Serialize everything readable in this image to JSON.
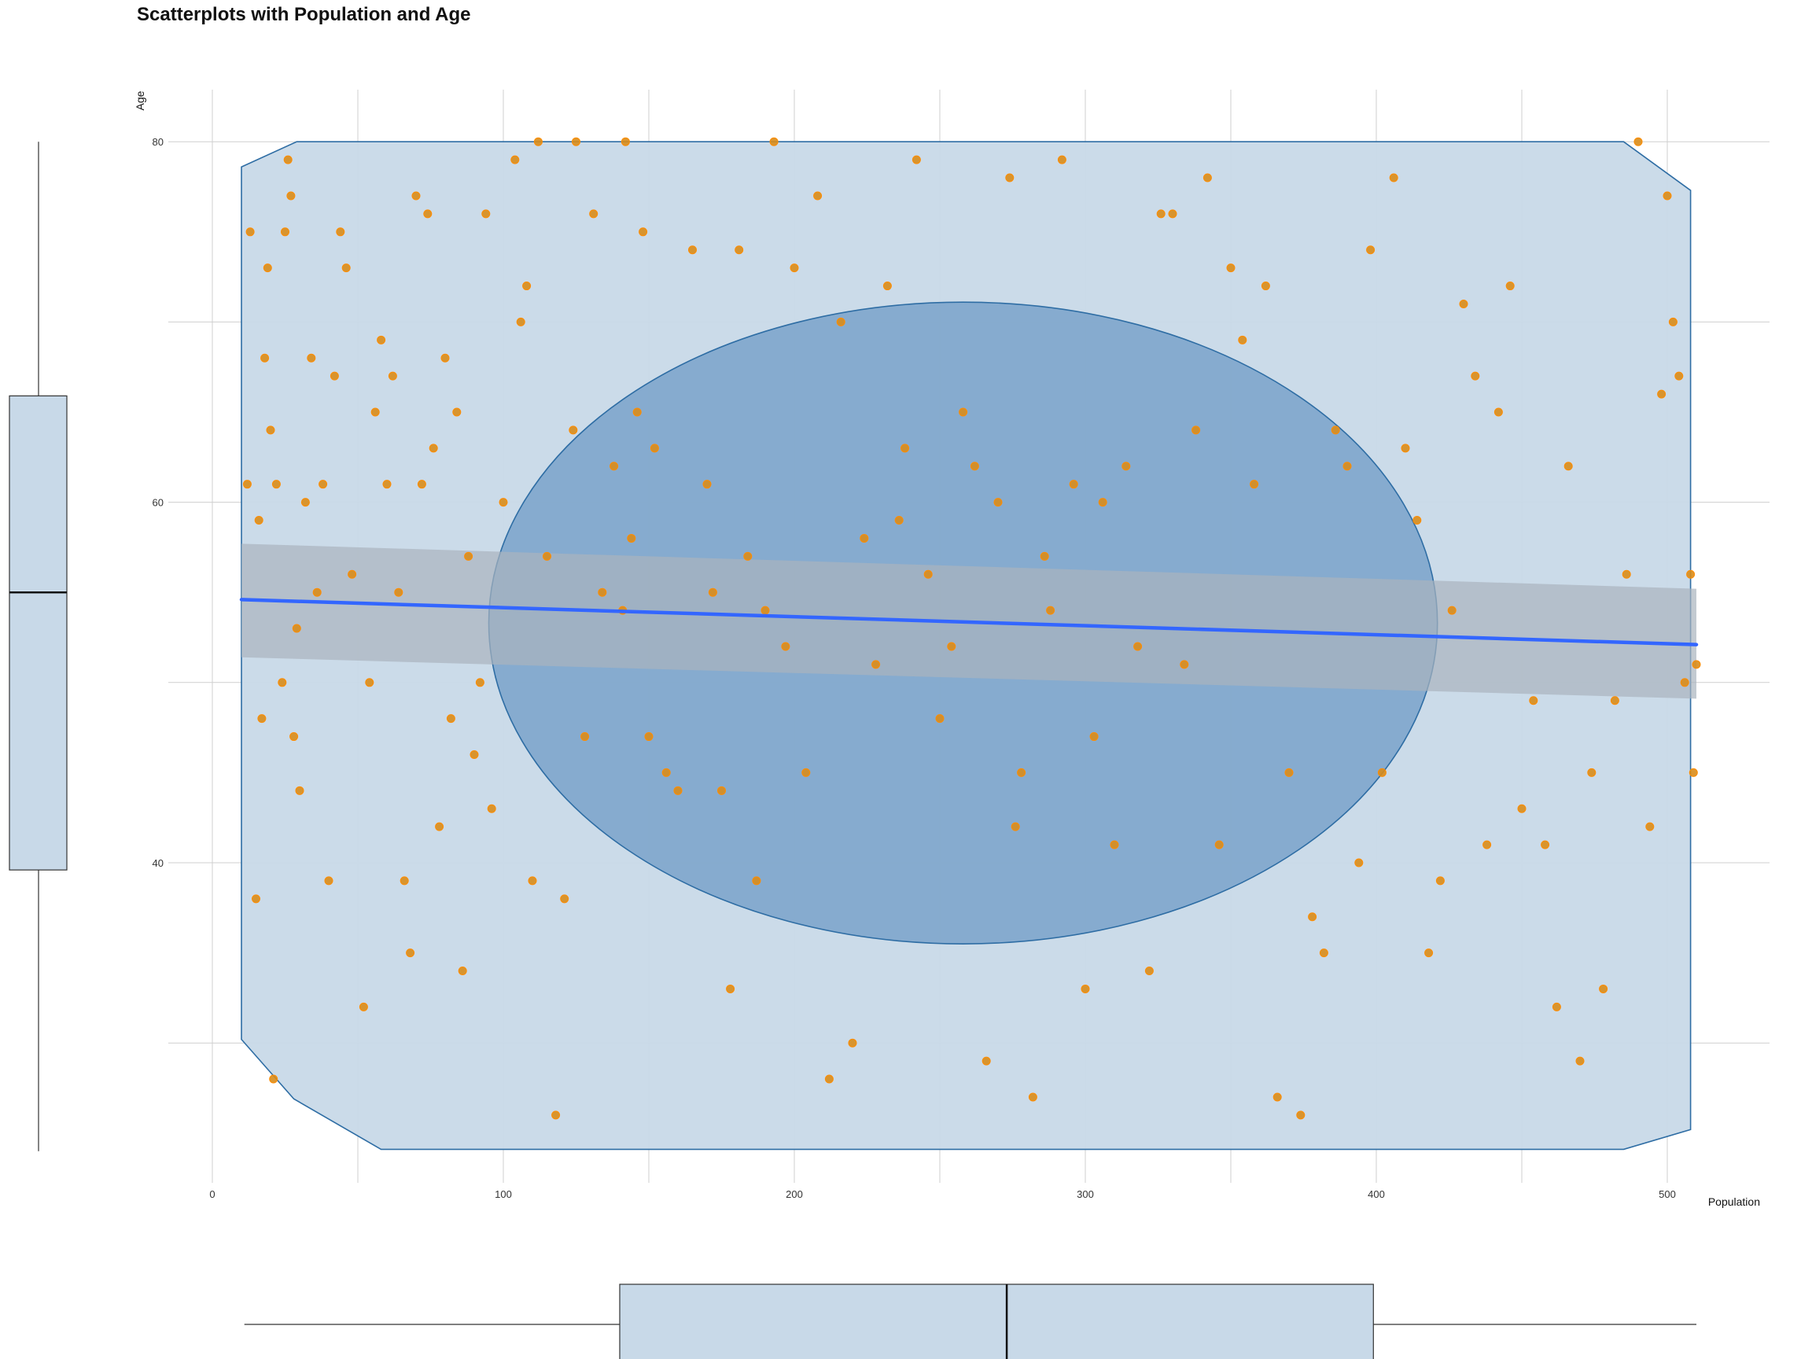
{
  "chart_data": {
    "type": "scatter",
    "title": "Scatterplots with Population and Age",
    "xlabel": "Population",
    "ylabel": "Age",
    "xlim": [
      -25,
      535
    ],
    "ylim": [
      21,
      83
    ],
    "x_ticks": [
      0,
      100,
      200,
      300,
      400,
      500
    ],
    "y_ticks": [
      40,
      60,
      80
    ],
    "grid": true,
    "colors": {
      "points": "#d98c1a",
      "points_edge": "#ff8c00",
      "regression_line": "#3366ff",
      "confidence_band": "#a9b3be",
      "hull_fill": "#c8d9e8",
      "hull_stroke": "#2e6da4",
      "ellipse_fill": "#6f9bc6",
      "grid": "#cfcfcf"
    },
    "series": [
      {
        "x": [
          12,
          13,
          15,
          16,
          17,
          18,
          19,
          20,
          21,
          22,
          24,
          25,
          26,
          27,
          28,
          29,
          30,
          32,
          34,
          36,
          38,
          40,
          42,
          44,
          46,
          48,
          52,
          54,
          56,
          58,
          60,
          62,
          64,
          66,
          68,
          70,
          72,
          74,
          76,
          78,
          80,
          82,
          84,
          86,
          88,
          90,
          92,
          94,
          96,
          100,
          104,
          106,
          108,
          110,
          112,
          115,
          118,
          121,
          124,
          125,
          128,
          131,
          134,
          138,
          141,
          142,
          144,
          146,
          148,
          150,
          152,
          156,
          160,
          165,
          170,
          172,
          175,
          178,
          181,
          184,
          187,
          190,
          193,
          197,
          200,
          204,
          208,
          212,
          216,
          220,
          224,
          228,
          232,
          236,
          238,
          242,
          246,
          250,
          254,
          258,
          262,
          266,
          270,
          274,
          276,
          278,
          282,
          286,
          288,
          292,
          296,
          300,
          303,
          306,
          310,
          314,
          318,
          322,
          326,
          330,
          334,
          338,
          342,
          346,
          350,
          354,
          358,
          362,
          366,
          370,
          374,
          378,
          382,
          386,
          390,
          394,
          398,
          402,
          406,
          410,
          414,
          418,
          422,
          426,
          430,
          434,
          438,
          442,
          446,
          450,
          454,
          458,
          462,
          466,
          470,
          474,
          478,
          482,
          486,
          490,
          494,
          498,
          500,
          502,
          504,
          506,
          508,
          509,
          510
        ],
        "y": [
          61,
          75,
          38,
          59,
          48,
          68,
          73,
          64,
          28,
          61,
          50,
          75,
          79,
          77,
          47,
          53,
          44,
          60,
          68,
          55,
          61,
          39,
          67,
          75,
          73,
          56,
          32,
          50,
          65,
          69,
          61,
          67,
          55,
          39,
          35,
          77,
          61,
          76,
          63,
          42,
          68,
          48,
          65,
          34,
          57,
          46,
          50,
          76,
          43,
          60,
          79,
          70,
          72,
          39,
          80,
          57,
          26,
          38,
          64,
          80,
          47,
          76,
          55,
          62,
          54,
          80,
          58,
          65,
          75,
          47,
          63,
          45,
          44,
          74,
          61,
          55,
          44,
          33,
          74,
          57,
          39,
          54,
          80,
          52,
          73,
          45,
          77,
          28,
          70,
          30,
          58,
          51,
          72,
          59,
          63,
          79,
          56,
          48,
          52,
          65,
          62,
          29,
          60,
          78,
          42,
          45,
          27,
          57,
          54,
          79,
          61,
          33,
          47,
          60,
          41,
          62,
          52,
          34,
          76,
          76,
          51,
          64,
          78,
          41,
          73,
          69,
          61,
          72,
          27,
          45,
          26,
          37,
          35,
          64,
          62,
          40,
          74,
          45,
          78,
          63,
          59,
          35,
          39,
          54,
          71,
          67,
          41,
          65,
          72,
          43,
          49,
          41,
          32,
          62,
          29,
          45,
          33,
          49,
          56,
          80,
          42,
          66,
          77,
          70,
          67,
          50,
          56,
          45,
          51
        ]
      }
    ],
    "regression": {
      "x": [
        10,
        510
      ],
      "y": [
        54.6,
        52.1
      ],
      "band_low": [
        51.4,
        49.1
      ],
      "band_high": [
        57.7,
        55.2
      ]
    },
    "hull": {
      "x": [
        10,
        29,
        485,
        508,
        508,
        485,
        58,
        28,
        10
      ],
      "y": [
        78.6,
        80,
        80,
        77.3,
        25.2,
        24.1,
        24.1,
        26.9,
        30.2
      ]
    },
    "ellipse": {
      "cx": 258,
      "cy": 53.3,
      "rx": 163,
      "ry": 17.8
    },
    "marginal_boxplots": {
      "y": {
        "min": 24.0,
        "q1": 39.6,
        "median": 55.0,
        "q3": 65.9,
        "max": 80.0
      },
      "x": {
        "min": 11,
        "q1": 140,
        "median": 273,
        "q3": 399,
        "max": 510
      }
    }
  }
}
